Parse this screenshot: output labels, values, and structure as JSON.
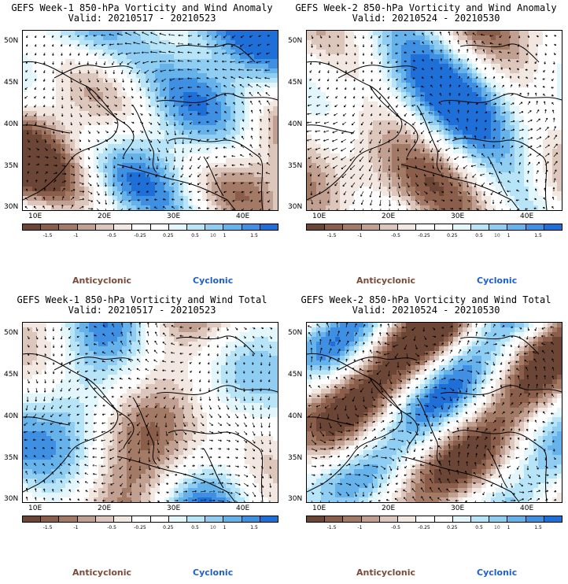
{
  "colors": {
    "anticyclonic": "#7a4b38",
    "cyclonic": "#1e5fd0",
    "scale": [
      "#6b4535",
      "#8a5e4a",
      "#a37a66",
      "#c1a091",
      "#ddc6bb",
      "#f2e7e1",
      "#ffffff",
      "#ffffff",
      "#e3f6fc",
      "#b7e4f6",
      "#8fcdf2",
      "#66b3ec",
      "#3f8fe2",
      "#1f6fd9"
    ]
  },
  "colorbar_labels": [
    "-1.5",
    "-1",
    "-0.5",
    "-0.25",
    "0.25",
    "0.5",
    "1",
    "1.5"
  ],
  "colorbar_ref": "10",
  "legend": {
    "anticyclonic": "Anticyclonic",
    "cyclonic": "Cyclonic"
  },
  "axes": {
    "lat_labels": [
      "50N",
      "45N",
      "40N",
      "35N",
      "30N"
    ],
    "lon_labels": [
      "10E",
      "20E",
      "30E",
      "40E"
    ]
  },
  "panels": [
    {
      "title1": "GEFS Week-1 850-hPa Vorticity and Wind Anomaly",
      "title2": "Valid: 20210517 - 20210523",
      "seed": 11,
      "bias": 0.15
    },
    {
      "title1": "GEFS Week-2 850-hPa Vorticity and Wind Anomaly",
      "title2": "Valid: 20210524 - 20210530",
      "seed": 23,
      "bias": -0.05
    },
    {
      "title1": "GEFS Week-1 850-hPa Vorticity and Wind Total",
      "title2": "Valid: 20210517 - 20210523",
      "seed": 37,
      "bias": 0.05
    },
    {
      "title1": "GEFS Week-2 850-hPa Vorticity and Wind Total",
      "title2": "Valid: 20210524 - 20210530",
      "seed": 53,
      "bias": -0.15
    }
  ]
}
